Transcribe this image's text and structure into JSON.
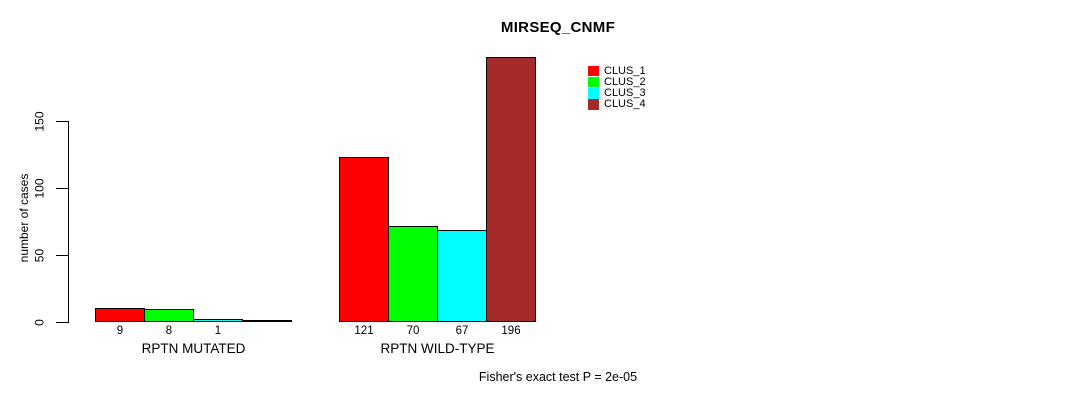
{
  "chart_data": {
    "type": "bar",
    "title": "MIRSEQ_CNMF",
    "ylabel": "number of cases",
    "xlabel": "",
    "yticks": [
      0,
      50,
      100,
      150
    ],
    "axis_range": [
      0,
      150
    ],
    "grid": false,
    "legend_position": "top-right",
    "background_color": "#FFFFFF",
    "bar_border_color": "#000000",
    "legend": [
      {
        "label": "CLUS_1",
        "color": "#FF0000"
      },
      {
        "label": "CLUS_2",
        "color": "#00FF00"
      },
      {
        "label": "CLUS_3",
        "color": "#00FFFF"
      },
      {
        "label": "CLUS_4",
        "color": "#A52A2A"
      }
    ],
    "groups": [
      {
        "label": "RPTN MUTATED",
        "values": [
          9,
          8,
          1,
          0
        ],
        "bar_labels": [
          "9",
          "8",
          "1",
          ""
        ]
      },
      {
        "label": "RPTN WILD-TYPE",
        "values": [
          121,
          70,
          67,
          196
        ],
        "bar_labels": [
          "121",
          "70",
          "67",
          "196"
        ]
      }
    ],
    "footnote": "Fisher's exact test P = 2e-05"
  }
}
